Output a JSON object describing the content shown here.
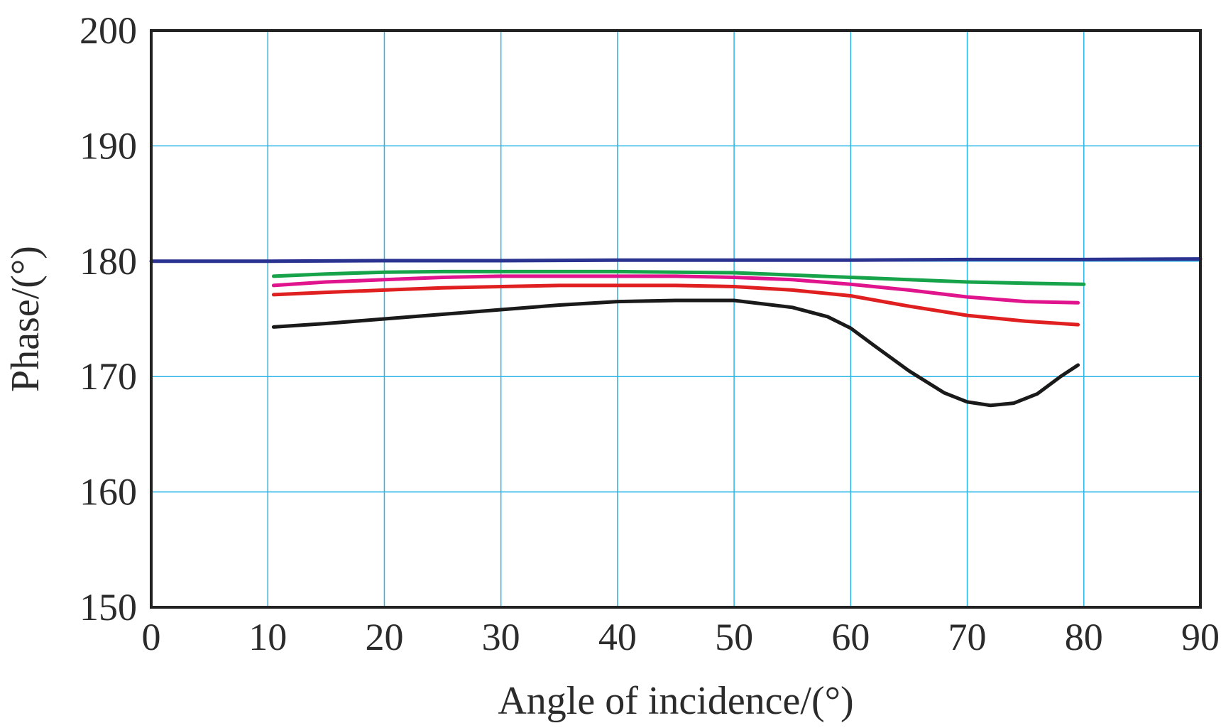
{
  "chart_data": {
    "type": "line",
    "title": "",
    "xlabel": "Angle of incidence/(°)",
    "ylabel": "Phase/(°)",
    "xlim": [
      0,
      90
    ],
    "ylim": [
      150,
      200
    ],
    "xticks": [
      0,
      10,
      20,
      30,
      40,
      50,
      60,
      70,
      80,
      90
    ],
    "yticks": [
      150,
      160,
      170,
      180,
      190,
      200
    ],
    "grid": true,
    "colors": {
      "grid": "#29b5e8",
      "frame": "#222222",
      "text": "#2b2b2b"
    },
    "series": [
      {
        "name": "blue",
        "color": "#2a3490",
        "x": [
          0,
          10,
          20,
          30,
          40,
          50,
          60,
          70,
          80,
          90
        ],
        "y": [
          180.0,
          180.0,
          180.05,
          180.05,
          180.1,
          180.1,
          180.1,
          180.15,
          180.15,
          180.2
        ]
      },
      {
        "name": "green",
        "color": "#16a34a",
        "x": [
          10.5,
          15,
          20,
          25,
          30,
          35,
          40,
          45,
          50,
          55,
          60,
          65,
          70,
          75,
          80
        ],
        "y": [
          178.7,
          178.9,
          179.05,
          179.1,
          179.1,
          179.1,
          179.1,
          179.05,
          179.0,
          178.8,
          178.6,
          178.4,
          178.2,
          178.1,
          178.0
        ]
      },
      {
        "name": "magenta",
        "color": "#e0148c",
        "x": [
          10.5,
          15,
          20,
          25,
          30,
          35,
          40,
          45,
          50,
          55,
          60,
          65,
          70,
          75,
          79.5
        ],
        "y": [
          177.9,
          178.2,
          178.4,
          178.6,
          178.7,
          178.7,
          178.7,
          178.7,
          178.6,
          178.4,
          178.0,
          177.5,
          176.9,
          176.5,
          176.4
        ]
      },
      {
        "name": "red",
        "color": "#e02020",
        "x": [
          10.5,
          15,
          20,
          25,
          30,
          35,
          40,
          45,
          50,
          55,
          60,
          65,
          70,
          75,
          79.5
        ],
        "y": [
          177.1,
          177.3,
          177.5,
          177.7,
          177.8,
          177.9,
          177.9,
          177.9,
          177.8,
          177.5,
          177.0,
          176.1,
          175.3,
          174.8,
          174.5
        ]
      },
      {
        "name": "black",
        "color": "#1a1a1a",
        "x": [
          10.5,
          15,
          20,
          25,
          30,
          35,
          40,
          45,
          50,
          55,
          58,
          60,
          62,
          65,
          68,
          70,
          72,
          74,
          76,
          78,
          79.5
        ],
        "y": [
          174.3,
          174.6,
          175.0,
          175.4,
          175.8,
          176.2,
          176.5,
          176.6,
          176.6,
          176.0,
          175.2,
          174.2,
          172.7,
          170.5,
          168.6,
          167.8,
          167.5,
          167.7,
          168.5,
          170.0,
          171.0
        ]
      }
    ]
  }
}
